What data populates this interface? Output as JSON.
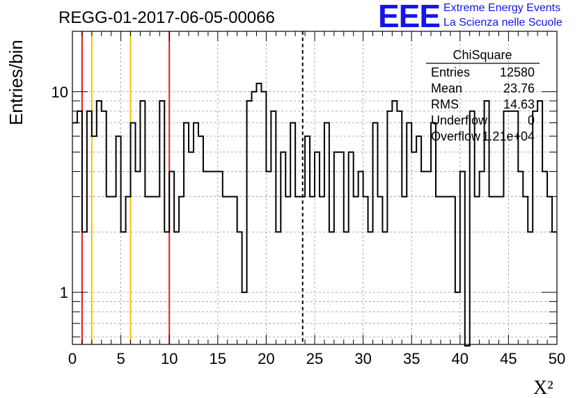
{
  "logo": {
    "mark": "EEE",
    "line1": "Extreme Energy Events",
    "line2": "La Scienza nelle Scuole"
  },
  "colors": {
    "logo": "#1515e8",
    "histogram": "#000000",
    "red_lines": "#e41a1c",
    "yellow_lines": "#f5c400",
    "grid": "#999999"
  },
  "stats": {
    "title": "ChiSquare",
    "rows": [
      {
        "label": "Entries",
        "value": "12580"
      },
      {
        "label": "Mean",
        "value": "23.76"
      },
      {
        "label": "RMS",
        "value": "14.63"
      },
      {
        "label": "Underflow",
        "value": "0"
      },
      {
        "label": "Overflow",
        "value": "1.21e+04"
      }
    ]
  },
  "chart_data": {
    "type": "bar",
    "title": "REGG-01-2017-06-05-00066",
    "xlabel": "X²",
    "ylabel": "Entries/bin",
    "xlim": [
      0,
      50
    ],
    "ylim": [
      0.55,
      20
    ],
    "y_scale": "log",
    "grid": true,
    "histogram_style": "step",
    "x_ticks": [
      "0",
      "5",
      "10",
      "15",
      "20",
      "25",
      "30",
      "35",
      "40",
      "45",
      "50"
    ],
    "y_ticks": [
      "1",
      "10"
    ],
    "bin_width": 0.5,
    "bin_values": [
      7,
      8,
      2,
      8,
      6,
      9,
      8,
      3,
      3,
      6,
      2,
      3,
      7,
      4,
      9,
      3,
      3,
      3,
      9,
      2,
      4,
      2,
      3,
      7,
      5,
      7,
      6,
      4,
      4,
      4,
      4,
      3,
      3,
      3,
      2,
      1,
      9,
      10,
      11,
      10,
      4,
      8,
      2,
      5,
      3,
      7,
      3,
      3,
      6,
      3,
      5,
      3,
      7,
      2,
      5,
      5,
      2,
      5,
      3,
      4,
      3,
      2,
      7,
      3,
      2,
      8,
      9,
      8,
      3,
      7,
      5,
      6,
      4,
      4,
      7,
      3,
      3,
      3,
      3,
      1,
      4,
      0,
      8,
      3,
      4,
      9,
      3,
      3,
      3,
      8,
      8,
      8,
      4,
      3,
      2,
      8,
      9,
      4,
      3,
      2
    ],
    "vlines": [
      {
        "x": 1,
        "color": "red",
        "style": "solid"
      },
      {
        "x": 10,
        "color": "red",
        "style": "solid"
      },
      {
        "x": 2,
        "color": "yellow",
        "style": "solid"
      },
      {
        "x": 6,
        "color": "yellow",
        "style": "solid"
      },
      {
        "x": 23.76,
        "color": "black",
        "style": "dashed"
      }
    ]
  }
}
